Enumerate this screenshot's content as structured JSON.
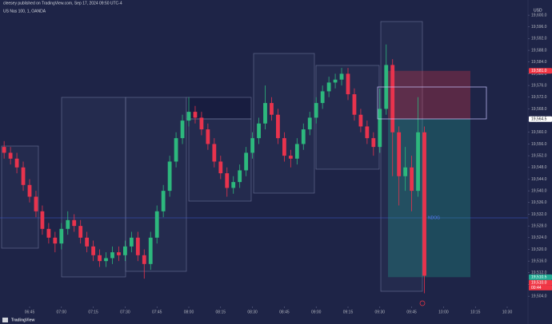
{
  "chart_data": {
    "type": "candlestick",
    "subtitle": "cleesey published on TradingView.com, Sep 17, 2024 09:50 UTC-4",
    "title": "US Nas 100, 1, OANDA",
    "currency": "USD",
    "footer": "TradingView",
    "annotation": "NDOG",
    "countdown": "00:44",
    "up_color": "#2db87d",
    "down_color": "#e8334d",
    "categories": [
      null,
      null,
      null,
      null,
      "06:45",
      null,
      null,
      null,
      null,
      "07:00",
      null,
      null,
      null,
      null,
      "07:15",
      null,
      null,
      null,
      null,
      "07:30",
      null,
      null,
      null,
      null,
      "07:45",
      null,
      null,
      null,
      null,
      "08:00",
      null,
      null,
      null,
      null,
      "08:15",
      null,
      null,
      null,
      null,
      "08:30",
      null,
      null,
      null,
      null,
      "08:45",
      null,
      null,
      null,
      null,
      "09:00",
      null,
      null,
      null,
      null,
      "09:15",
      null,
      null,
      null,
      null,
      "09:30",
      null,
      null,
      null,
      null,
      "09:45",
      null,
      null,
      null,
      null,
      "10:00",
      null,
      null,
      null,
      null,
      "10:15",
      null,
      null,
      null,
      null,
      "10:30"
    ],
    "open": [
      19555,
      19553,
      19551,
      19548,
      19542,
      19538,
      19533,
      19527,
      19524,
      19522,
      19527,
      19530,
      19528,
      19524,
      19521,
      19518,
      19516,
      19517,
      19519,
      19518,
      19521,
      19524,
      19518,
      19515,
      19524,
      19533,
      19540,
      19550,
      19558,
      19564,
      19567,
      19565,
      19561,
      19556,
      19550,
      19546,
      19541,
      19543,
      19547,
      19553,
      19558,
      19563,
      19570,
      19566,
      19558,
      19552,
      19551,
      19556,
      19561,
      19565,
      19570,
      19574,
      19577,
      19578,
      19580,
      19573,
      19566,
      19562,
      19558,
      19555,
      19568,
      19583,
      19560,
      19545,
      19548,
      19540,
      19560,
      null,
      null,
      null,
      null,
      null,
      null,
      null,
      null,
      null,
      null,
      null,
      null,
      null
    ],
    "high": [
      19557,
      19555,
      19553,
      19550,
      19544,
      19540,
      19535,
      19529,
      19526,
      19529,
      19533,
      19532,
      19530,
      19526,
      19523,
      19520,
      19519,
      19521,
      19521,
      19523,
      19526,
      19526,
      19520,
      19526,
      19535,
      19542,
      19552,
      19560,
      19566,
      19572,
      19569,
      19567,
      19563,
      19558,
      19552,
      19548,
      19545,
      19549,
      19555,
      19560,
      19565,
      19576,
      19572,
      19568,
      19560,
      19554,
      19558,
      19563,
      19567,
      19572,
      19576,
      19579,
      19580,
      19582,
      19582,
      19575,
      19568,
      19564,
      19560,
      19575,
      19590,
      19585,
      19562,
      19555,
      19552,
      19572,
      19562,
      null,
      null,
      null,
      null,
      null,
      null,
      null,
      null,
      null,
      null,
      null,
      null,
      null
    ],
    "low": [
      19551,
      19549,
      19546,
      19540,
      19536,
      19531,
      19525,
      19522,
      19519,
      19520,
      19525,
      19526,
      19522,
      19519,
      19516,
      19514,
      19514,
      19515,
      19516,
      19516,
      19519,
      19516,
      19510,
      19513,
      19522,
      19531,
      19538,
      19548,
      19556,
      19562,
      19563,
      19559,
      19554,
      19548,
      19544,
      19538,
      19539,
      19541,
      19545,
      19551,
      19556,
      19561,
      19564,
      19556,
      19550,
      19548,
      19549,
      19554,
      19559,
      19563,
      19568,
      19572,
      19575,
      19576,
      19571,
      19564,
      19560,
      19556,
      19552,
      19553,
      19566,
      19545,
      19535,
      19540,
      19533,
      19538,
      19505,
      null,
      null,
      null,
      null,
      null,
      null,
      null,
      null,
      null,
      null,
      null,
      null,
      null
    ],
    "close": [
      19553,
      19551,
      19548,
      19542,
      19538,
      19533,
      19527,
      19524,
      19522,
      19527,
      19530,
      19528,
      19524,
      19521,
      19518,
      19516,
      19517,
      19519,
      19518,
      19521,
      19524,
      19518,
      19515,
      19524,
      19533,
      19540,
      19550,
      19558,
      19564,
      19567,
      19565,
      19561,
      19556,
      19550,
      19546,
      19541,
      19543,
      19547,
      19553,
      19558,
      19563,
      19570,
      19566,
      19558,
      19552,
      19551,
      19556,
      19561,
      19565,
      19570,
      19574,
      19577,
      19578,
      19580,
      19573,
      19566,
      19562,
      19558,
      19555,
      19568,
      19583,
      19560,
      19545,
      19548,
      19540,
      19560,
      19511,
      null,
      null,
      null,
      null,
      null,
      null,
      null,
      null,
      null,
      null,
      null,
      null,
      null
    ],
    "ylim": [
      19500.5,
      19605.2
    ],
    "yticks": [
      {
        "value": 19504,
        "label": "19,504.0"
      },
      {
        "value": 19508,
        "label": "19,508.0"
      },
      {
        "value": 19512,
        "label": "19,512.0"
      },
      {
        "value": 19516,
        "label": "19,516.0"
      },
      {
        "value": 19520,
        "label": "19,520.0"
      },
      {
        "value": 19524,
        "label": "19,524.0"
      },
      {
        "value": 19528,
        "label": "19,528.0"
      },
      {
        "value": 19532,
        "label": "19,532.0"
      },
      {
        "value": 19536,
        "label": "19,536.0"
      },
      {
        "value": 19540,
        "label": "19,540.0"
      },
      {
        "value": 19544,
        "label": "19,544.0"
      },
      {
        "value": 19548,
        "label": "19,548.0"
      },
      {
        "value": 19552,
        "label": "19,552.0"
      },
      {
        "value": 19556,
        "label": "19,556.0"
      },
      {
        "value": 19560,
        "label": "19,560.0"
      },
      {
        "value": 19564,
        "label": "19,564.0"
      },
      {
        "value": 19568,
        "label": "19,568.0"
      },
      {
        "value": 19572,
        "label": "19,572.0"
      },
      {
        "value": 19576,
        "label": "19,576.0"
      },
      {
        "value": 19580,
        "label": "19,580.0"
      },
      {
        "value": 19584,
        "label": "19,584.0"
      },
      {
        "value": 19588,
        "label": "19,588.0"
      },
      {
        "value": 19592,
        "label": "19,592.0"
      },
      {
        "value": 19596,
        "label": "19,596.0"
      },
      {
        "value": 19600,
        "label": "19,600.0"
      }
    ],
    "price_labels": [
      {
        "value": 19581,
        "label": "19,581.0",
        "color": "#f23645"
      },
      {
        "value": 19564.5,
        "label": "19,564.5",
        "color": "#ffffff"
      },
      {
        "value": 19510.5,
        "label": "19,510.5",
        "color": "#22ab94"
      },
      {
        "value": 19510,
        "label": "19,510.0",
        "color": "#f23645"
      }
    ]
  }
}
